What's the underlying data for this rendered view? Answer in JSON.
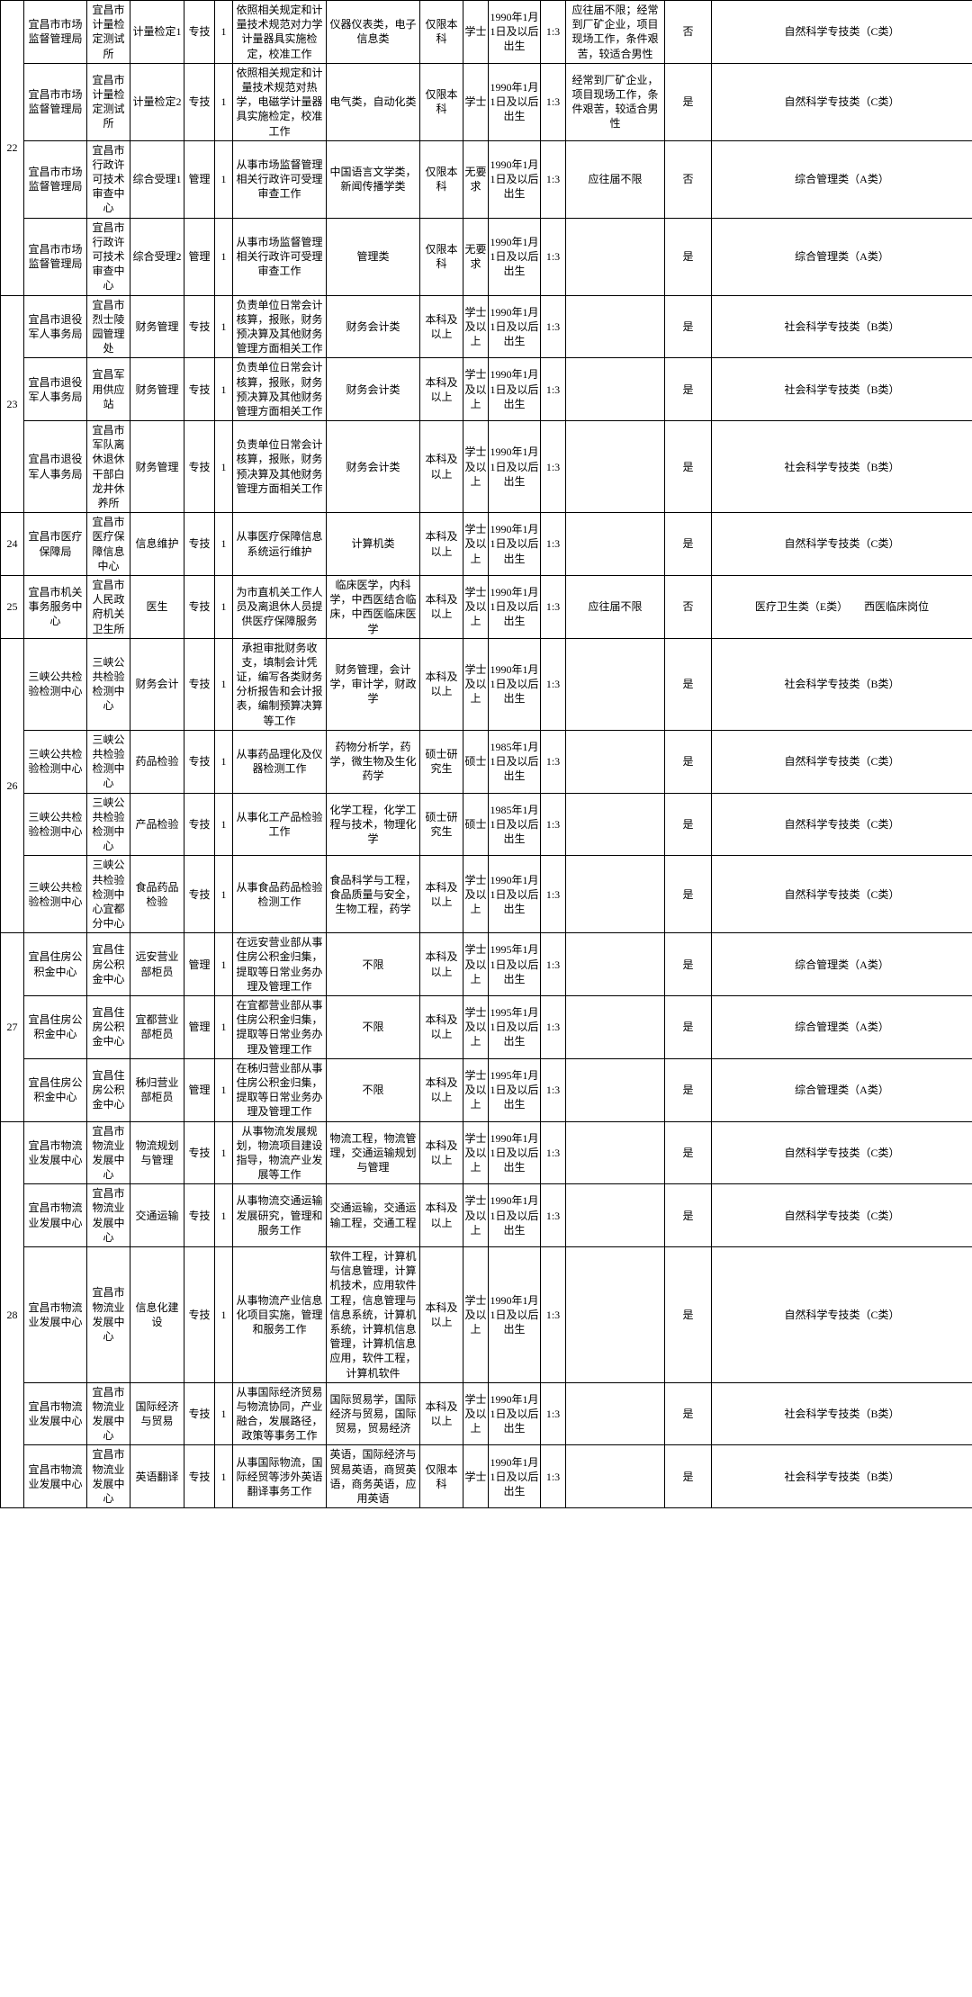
{
  "rows": [
    {
      "group": "22",
      "groupSpan": 4,
      "c1": "宜昌市市场监督管理局",
      "c2": "宜昌市计量检定测试所",
      "c3": "计量检定1",
      "c4": "专技",
      "c5": "1",
      "c6": "依照相关规定和计量技术规范对力学计量器具实施检定，校准工作",
      "c7": "仪器仪表类，电子信息类",
      "c8": "仅限本科",
      "c9": "学士",
      "c10": "1990年1月1日及以后出生",
      "c11": "1:3",
      "c12": "应往届不限；经常到厂矿企业，项目现场工作，条件艰苦，较适合男性",
      "c13": "否",
      "c14": "自然科学专技类（C类）"
    },
    {
      "c1": "宜昌市市场监督管理局",
      "c2": "宜昌市计量检定测试所",
      "c3": "计量检定2",
      "c4": "专技",
      "c5": "1",
      "c6": "依照相关规定和计量技术规范对热学，电磁学计量器具实施检定，校准工作",
      "c7": "电气类，自动化类",
      "c8": "仅限本科",
      "c9": "学士",
      "c10": "1990年1月1日及以后出生",
      "c11": "1:3",
      "c12": "经常到厂矿企业，项目现场工作，条件艰苦，较适合男性",
      "c13": "是",
      "c14": "自然科学专技类（C类）"
    },
    {
      "c1": "宜昌市市场监督管理局",
      "c2": "宜昌市行政许可技术审查中心",
      "c3": "综合受理1",
      "c4": "管理",
      "c5": "1",
      "c6": "从事市场监督管理相关行政许可受理审查工作",
      "c7": "中国语言文学类，新闻传播学类",
      "c8": "仅限本科",
      "c9": "无要求",
      "c10": "1990年1月1日及以后出生",
      "c11": "1:3",
      "c12": "应往届不限",
      "c13": "否",
      "c14": "综合管理类（A类）"
    },
    {
      "c1": "宜昌市市场监督管理局",
      "c2": "宜昌市行政许可技术审查中心",
      "c3": "综合受理2",
      "c4": "管理",
      "c5": "1",
      "c6": "从事市场监督管理相关行政许可受理审查工作",
      "c7": "管理类",
      "c8": "仅限本科",
      "c9": "无要求",
      "c10": "1990年1月1日及以后出生",
      "c11": "1:3",
      "c12": "",
      "c13": "是",
      "c14": "综合管理类（A类）"
    },
    {
      "group": "23",
      "groupSpan": 3,
      "c1": "宜昌市退役军人事务局",
      "c2": "宜昌市烈士陵园管理处",
      "c3": "财务管理",
      "c4": "专技",
      "c5": "1",
      "c6": "负责单位日常会计核算，报账，财务预决算及其他财务管理方面相关工作",
      "c7": "财务会计类",
      "c8": "本科及以上",
      "c9": "学士及以上",
      "c10": "1990年1月1日及以后出生",
      "c11": "1:3",
      "c12": "",
      "c13": "是",
      "c14": "社会科学专技类（B类）"
    },
    {
      "c1": "宜昌市退役军人事务局",
      "c2": "宜昌军用供应站",
      "c3": "财务管理",
      "c4": "专技",
      "c5": "1",
      "c6": "负责单位日常会计核算，报账，财务预决算及其他财务管理方面相关工作",
      "c7": "财务会计类",
      "c8": "本科及以上",
      "c9": "学士及以上",
      "c10": "1990年1月1日及以后出生",
      "c11": "1:3",
      "c12": "",
      "c13": "是",
      "c14": "社会科学专技类（B类）"
    },
    {
      "c1": "宜昌市退役军人事务局",
      "c2": "宜昌市军队离休退休干部白龙井休养所",
      "c3": "财务管理",
      "c4": "专技",
      "c5": "1",
      "c6": "负责单位日常会计核算，报账，财务预决算及其他财务管理方面相关工作",
      "c7": "财务会计类",
      "c8": "本科及以上",
      "c9": "学士及以上",
      "c10": "1990年1月1日及以后出生",
      "c11": "1:3",
      "c12": "",
      "c13": "是",
      "c14": "社会科学专技类（B类）"
    },
    {
      "group": "24",
      "groupSpan": 1,
      "c1": "宜昌市医疗保障局",
      "c2": "宜昌市医疗保障信息中心",
      "c3": "信息维护",
      "c4": "专技",
      "c5": "1",
      "c6": "从事医疗保障信息系统运行维护",
      "c7": "计算机类",
      "c8": "本科及以上",
      "c9": "学士及以上",
      "c10": "1990年1月1日及以后出生",
      "c11": "1:3",
      "c12": "",
      "c13": "是",
      "c14": "自然科学专技类（C类）"
    },
    {
      "group": "25",
      "groupSpan": 1,
      "c1": "宜昌市机关事务服务中心",
      "c2": "宜昌市人民政府机关卫生所",
      "c3": "医生",
      "c4": "专技",
      "c5": "1",
      "c6": "为市直机关工作人员及离退休人员提供医疗保障服务",
      "c7": "临床医学，内科学，中西医结合临床，中西医临床医学",
      "c8": "本科及以上",
      "c9": "学士及以上",
      "c10": "1990年1月1日及以后出生",
      "c11": "1:3",
      "c12": "应往届不限",
      "c13": "否",
      "c14": "医疗卫生类（E类）　　西医临床岗位"
    },
    {
      "group": "26",
      "groupSpan": 4,
      "c1": "三峡公共检验检测中心",
      "c2": "三峡公共检验检测中心",
      "c3": "财务会计",
      "c4": "专技",
      "c5": "1",
      "c6": "承担审批财务收支，填制会计凭证，编写各类财务分析报告和会计报表，编制预算决算等工作",
      "c7": "财务管理，会计学，审计学，财政学",
      "c8": "本科及以上",
      "c9": "学士及以上",
      "c10": "1990年1月1日及以后出生",
      "c11": "1:3",
      "c12": "",
      "c13": "是",
      "c14": "社会科学专技类（B类）"
    },
    {
      "c1": "三峡公共检验检测中心",
      "c2": "三峡公共检验检测中心",
      "c3": "药品检验",
      "c4": "专技",
      "c5": "1",
      "c6": "从事药品理化及仪器检测工作",
      "c7": "药物分析学，药学，微生物及生化药学",
      "c8": "硕士研究生",
      "c9": "硕士",
      "c10": "1985年1月1日及以后出生",
      "c11": "1:3",
      "c12": "",
      "c13": "是",
      "c14": "自然科学专技类（C类）"
    },
    {
      "c1": "三峡公共检验检测中心",
      "c2": "三峡公共检验检测中心",
      "c3": "产品检验",
      "c4": "专技",
      "c5": "1",
      "c6": "从事化工产品检验工作",
      "c7": "化学工程，化学工程与技术，物理化学",
      "c8": "硕士研究生",
      "c9": "硕士",
      "c10": "1985年1月1日及以后出生",
      "c11": "1:3",
      "c12": "",
      "c13": "是",
      "c14": "自然科学专技类（C类）"
    },
    {
      "c1": "三峡公共检验检测中心",
      "c2": "三峡公共检验检测中心宜都分中心",
      "c3": "食品药品检验",
      "c4": "专技",
      "c5": "1",
      "c6": "从事食品药品检验检测工作",
      "c7": "食品科学与工程，食品质量与安全，生物工程，药学",
      "c8": "本科及以上",
      "c9": "学士及以上",
      "c10": "1990年1月1日及以后出生",
      "c11": "1:3",
      "c12": "",
      "c13": "是",
      "c14": "自然科学专技类（C类）"
    },
    {
      "group": "27",
      "groupSpan": 3,
      "c1": "宜昌住房公积金中心",
      "c2": "宜昌住房公积金中心",
      "c3": "远安营业部柜员",
      "c4": "管理",
      "c5": "1",
      "c6": "在远安营业部从事住房公积金归集，提取等日常业务办理及管理工作",
      "c7": "不限",
      "c8": "本科及以上",
      "c9": "学士及以上",
      "c10": "1995年1月1日及以后出生",
      "c11": "1:3",
      "c12": "",
      "c13": "是",
      "c14": "综合管理类（A类）"
    },
    {
      "c1": "宜昌住房公积金中心",
      "c2": "宜昌住房公积金中心",
      "c3": "宜都营业部柜员",
      "c4": "管理",
      "c5": "1",
      "c6": "在宜都营业部从事住房公积金归集，提取等日常业务办理及管理工作",
      "c7": "不限",
      "c8": "本科及以上",
      "c9": "学士及以上",
      "c10": "1995年1月1日及以后出生",
      "c11": "1:3",
      "c12": "",
      "c13": "是",
      "c14": "综合管理类（A类）"
    },
    {
      "c1": "宜昌住房公积金中心",
      "c2": "宜昌住房公积金中心",
      "c3": "秭归营业部柜员",
      "c4": "管理",
      "c5": "1",
      "c6": "在秭归营业部从事住房公积金归集，提取等日常业务办理及管理工作",
      "c7": "不限",
      "c8": "本科及以上",
      "c9": "学士及以上",
      "c10": "1995年1月1日及以后出生",
      "c11": "1:3",
      "c12": "",
      "c13": "是",
      "c14": "综合管理类（A类）"
    },
    {
      "group": "28",
      "groupSpan": 5,
      "c1": "宜昌市物流业发展中心",
      "c2": "宜昌市物流业发展中心",
      "c3": "物流规划与管理",
      "c4": "专技",
      "c5": "1",
      "c6": "从事物流发展规划，物流项目建设指导，物流产业发展等工作",
      "c7": "物流工程，物流管理，交通运输规划与管理",
      "c8": "本科及以上",
      "c9": "学士及以上",
      "c10": "1990年1月1日及以后出生",
      "c11": "1:3",
      "c12": "",
      "c13": "是",
      "c14": "自然科学专技类（C类）"
    },
    {
      "c1": "宜昌市物流业发展中心",
      "c2": "宜昌市物流业发展中心",
      "c3": "交通运输",
      "c4": "专技",
      "c5": "1",
      "c6": "从事物流交通运输发展研究，管理和服务工作",
      "c7": "交通运输，交通运输工程，交通工程",
      "c8": "本科及以上",
      "c9": "学士及以上",
      "c10": "1990年1月1日及以后出生",
      "c11": "1:3",
      "c12": "",
      "c13": "是",
      "c14": "自然科学专技类（C类）"
    },
    {
      "c1": "宜昌市物流业发展中心",
      "c2": "宜昌市物流业发展中心",
      "c3": "信息化建设",
      "c4": "专技",
      "c5": "1",
      "c6": "从事物流产业信息化项目实施，管理和服务工作",
      "c7": "软件工程，计算机与信息管理，计算机技术，应用软件工程，信息管理与信息系统，计算机系统，计算机信息管理，计算机信息应用，软件工程，计算机软件",
      "c8": "本科及以上",
      "c9": "学士及以上",
      "c10": "1990年1月1日及以后出生",
      "c11": "1:3",
      "c12": "",
      "c13": "是",
      "c14": "自然科学专技类（C类）"
    },
    {
      "c1": "宜昌市物流业发展中心",
      "c2": "宜昌市物流业发展中心",
      "c3": "国际经济与贸易",
      "c4": "专技",
      "c5": "1",
      "c6": "从事国际经济贸易与物流协同，产业融合，发展路径，政策等事务工作",
      "c7": "国际贸易学，国际经济与贸易，国际贸易，贸易经济",
      "c8": "本科及以上",
      "c9": "学士及以上",
      "c10": "1990年1月1日及以后出生",
      "c11": "1:3",
      "c12": "",
      "c13": "是",
      "c14": "社会科学专技类（B类）"
    },
    {
      "c1": "宜昌市物流业发展中心",
      "c2": "宜昌市物流业发展中心",
      "c3": "英语翻译",
      "c4": "专技",
      "c5": "1",
      "c6": "从事国际物流，国际经贸等涉外英语翻译事务工作",
      "c7": "英语，国际经济与贸易英语，商贸英语，商务英语，应用英语",
      "c8": "仅限本科",
      "c9": "学士",
      "c10": "1990年1月1日及以后出生",
      "c11": "1:3",
      "c12": "",
      "c13": "是",
      "c14": "社会科学专技类（B类）"
    }
  ]
}
